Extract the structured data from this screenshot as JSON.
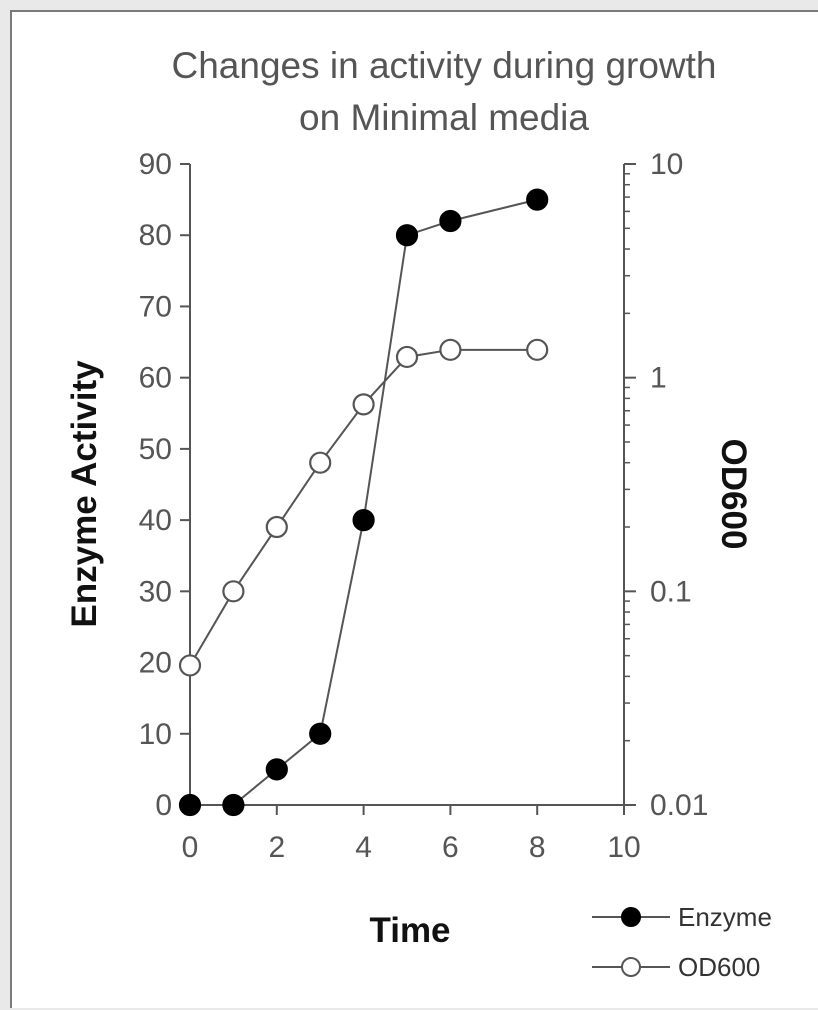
{
  "chart_data": {
    "type": "line",
    "title": "Changes in activity during growth on Minimal media",
    "title_lines": [
      "Changes in activity during growth",
      "on Minimal media"
    ],
    "xlabel": "Time",
    "ylabel": "Enzyme Activity",
    "y2label": "OD600",
    "xlim": [
      0,
      10
    ],
    "ylim": [
      0,
      90
    ],
    "y2lim": [
      0.01,
      10
    ],
    "y2scale": "log",
    "x_ticks": [
      "0",
      "2",
      "4",
      "6",
      "8",
      "10"
    ],
    "y_ticks": [
      "0",
      "10",
      "20",
      "30",
      "40",
      "50",
      "60",
      "70",
      "80",
      "90"
    ],
    "y2_ticks": [
      "0.01",
      "0.1",
      "1",
      "10"
    ],
    "grid": false,
    "legend_position": "bottom-right",
    "series": [
      {
        "name": "Enzyme",
        "axis": "left",
        "marker": "filled-circle",
        "x": [
          0,
          1,
          2,
          3,
          4,
          5,
          6,
          8
        ],
        "y": [
          0,
          0,
          5,
          10,
          40,
          80,
          82,
          85
        ]
      },
      {
        "name": "OD600",
        "axis": "right",
        "marker": "open-circle",
        "x": [
          0,
          1,
          2,
          3,
          4,
          5,
          6,
          8
        ],
        "y": [
          0.045,
          0.1,
          0.2,
          0.4,
          0.75,
          1.25,
          1.35,
          1.35
        ]
      }
    ]
  }
}
